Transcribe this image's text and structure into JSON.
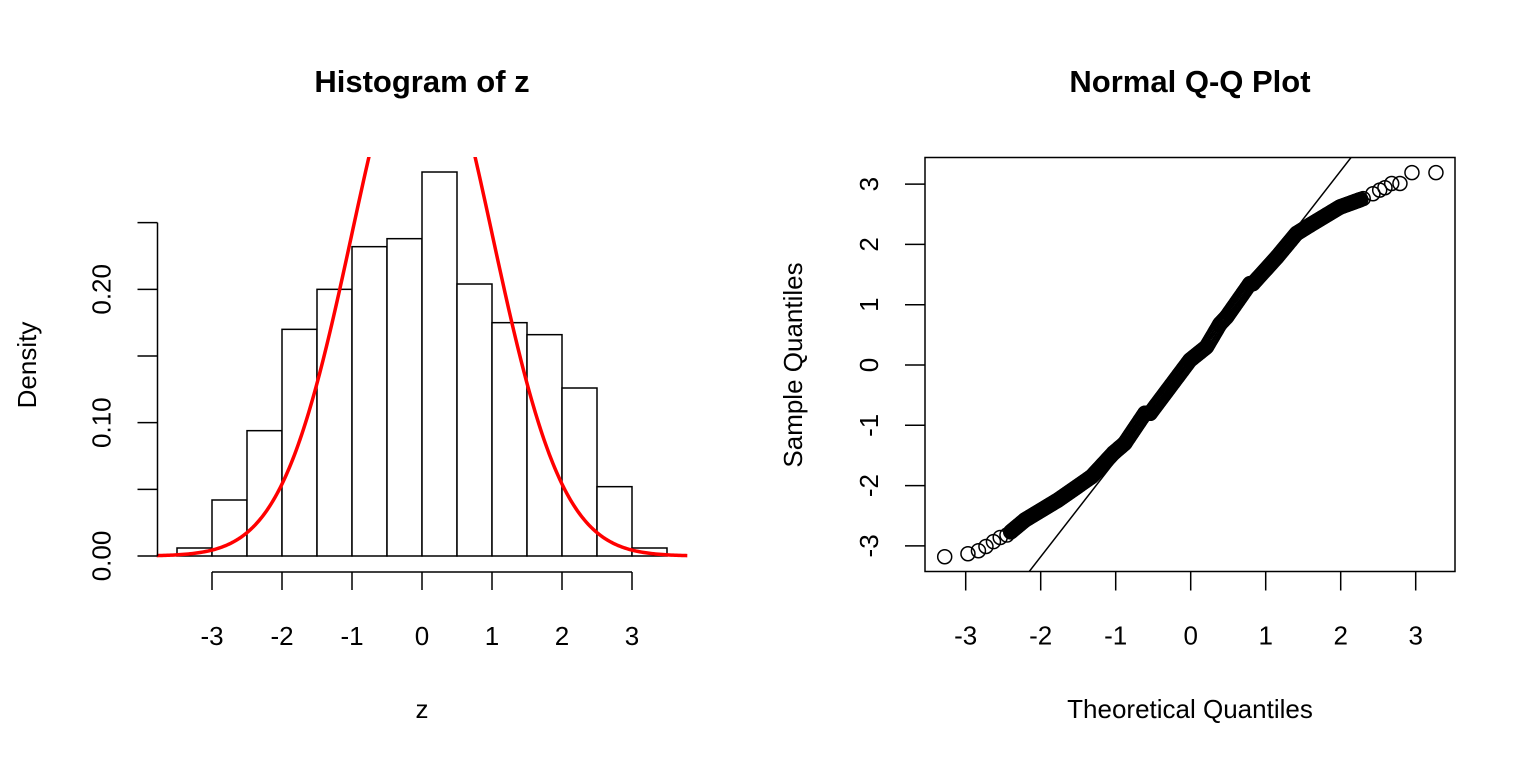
{
  "chart_data": [
    {
      "type": "bar",
      "subtype": "histogram",
      "title": "Histogram of z",
      "xlabel": "z",
      "ylabel": "Density",
      "bin_edges": [
        -3.5,
        -3.0,
        -2.5,
        -2.0,
        -1.5,
        -1.0,
        -0.5,
        0.0,
        0.5,
        1.0,
        1.5,
        2.0,
        2.5,
        3.0,
        3.5
      ],
      "values": [
        0.006,
        0.042,
        0.094,
        0.17,
        0.2,
        0.232,
        0.238,
        0.288,
        0.204,
        0.175,
        0.166,
        0.126,
        0.052,
        0.006
      ],
      "xlim": [
        -3.79,
        3.79
      ],
      "ylim": [
        0,
        0.3
      ],
      "xticks": [
        -3,
        -2,
        -1,
        0,
        1,
        2,
        3
      ],
      "xtick_labels": [
        "-3",
        "-2",
        "-1",
        "0",
        "1",
        "2",
        "3"
      ],
      "yticks": [
        0.0,
        0.05,
        0.1,
        0.15,
        0.2,
        0.25
      ],
      "ytick_labels": [
        "0.00",
        "",
        "0.10",
        "",
        "0.20",
        ""
      ],
      "overlay": {
        "type": "line",
        "name": "standard normal density",
        "function": "dnorm(x, mean=0, sd=1)",
        "mean": 0,
        "sd": 1,
        "x_range": [
          -3.79,
          3.79
        ],
        "color": "#ff0000"
      },
      "bar_fill": "#ffffff",
      "bar_stroke": "#000000"
    },
    {
      "type": "scatter",
      "subtype": "qq",
      "title": "Normal Q-Q Plot",
      "xlabel": "Theoretical Quantiles",
      "ylabel": "Sample Quantiles",
      "xlim": [
        -3.45,
        3.6
      ],
      "ylim": [
        -3.45,
        3.45
      ],
      "xticks": [
        -3,
        -2,
        -1,
        0,
        1,
        2,
        3
      ],
      "xtick_labels": [
        "-3",
        "-2",
        "-1",
        "0",
        "1",
        "2",
        "3"
      ],
      "yticks": [
        -3,
        -2,
        -1,
        0,
        1,
        2,
        3
      ],
      "ytick_labels": [
        "-3",
        "-2",
        "-1",
        "0",
        "1",
        "2",
        "3"
      ],
      "points": {
        "x": [
          -3.28,
          -2.97,
          -2.83,
          -2.73,
          -2.63,
          -2.54,
          -2.45,
          -2.21,
          -1.77,
          -1.32,
          -1.03,
          -0.88,
          -0.61,
          -0.54,
          -0.01,
          0.21,
          0.39,
          0.48,
          0.79,
          0.83,
          1.15,
          1.41,
          1.59,
          1.99,
          2.3,
          2.43,
          2.52,
          2.59,
          2.68,
          2.79,
          2.95,
          3.27
        ],
        "y": [
          -3.18,
          -3.13,
          -3.08,
          -3.01,
          -2.93,
          -2.86,
          -2.82,
          -2.57,
          -2.24,
          -1.85,
          -1.46,
          -1.3,
          -0.8,
          -0.8,
          0.08,
          0.3,
          0.68,
          0.8,
          1.35,
          1.35,
          1.79,
          2.18,
          2.32,
          2.62,
          2.76,
          2.84,
          2.9,
          2.94,
          3.01,
          3.01,
          3.19,
          3.19
        ]
      },
      "reference_line": {
        "intercept": 0.02,
        "slope": 1.6,
        "color": "#000000"
      },
      "marker": "open-circle"
    }
  ]
}
